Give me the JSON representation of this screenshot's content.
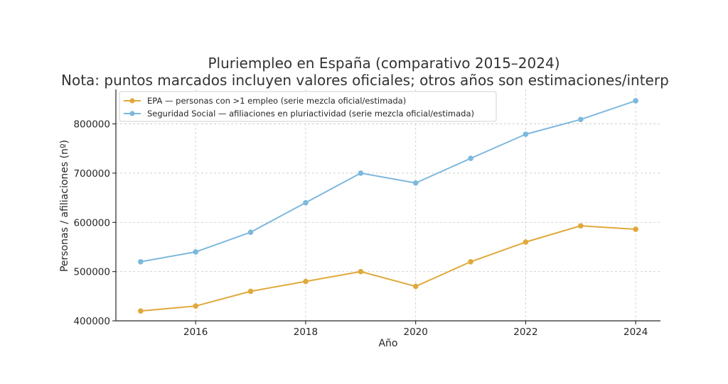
{
  "chart_data": {
    "type": "line",
    "title": "Pluriempleo en España (comparativo 2015–2024)",
    "subtitle": "Nota: puntos marcados incluyen valores oficiales; otros años son estimaciones/interpolac",
    "xlabel": "Año",
    "ylabel": "Personas / afiliaciones (nº)",
    "xlim": [
      2014.55,
      2024.45
    ],
    "ylim": [
      400000,
      870000
    ],
    "x": [
      2015,
      2016,
      2017,
      2018,
      2019,
      2020,
      2021,
      2022,
      2023,
      2024
    ],
    "x_ticks": [
      2016,
      2018,
      2020,
      2022,
      2024
    ],
    "x_tick_labels": [
      "2016",
      "2018",
      "2020",
      "2022",
      "2024"
    ],
    "y_ticks": [
      400000,
      500000,
      600000,
      700000,
      800000
    ],
    "y_tick_labels": [
      "400000",
      "500000",
      "600000",
      "700000",
      "800000"
    ],
    "grid": true,
    "legend_position": "top-left",
    "series": [
      {
        "name": "EPA — personas con >1 empleo (serie mezcla oficial/estimada)",
        "color": "#E0A93B",
        "values": [
          420000,
          430000,
          460000,
          480000,
          500000,
          470000,
          520000,
          560000,
          593000,
          586000
        ]
      },
      {
        "name": "Seguridad Social — afiliaciones en pluriactividad (serie mezcla oficial/estimada)",
        "color": "#7DB8DD",
        "values": [
          520000,
          540000,
          580000,
          640000,
          700000,
          680000,
          730000,
          779000,
          809000,
          847000
        ]
      }
    ]
  }
}
